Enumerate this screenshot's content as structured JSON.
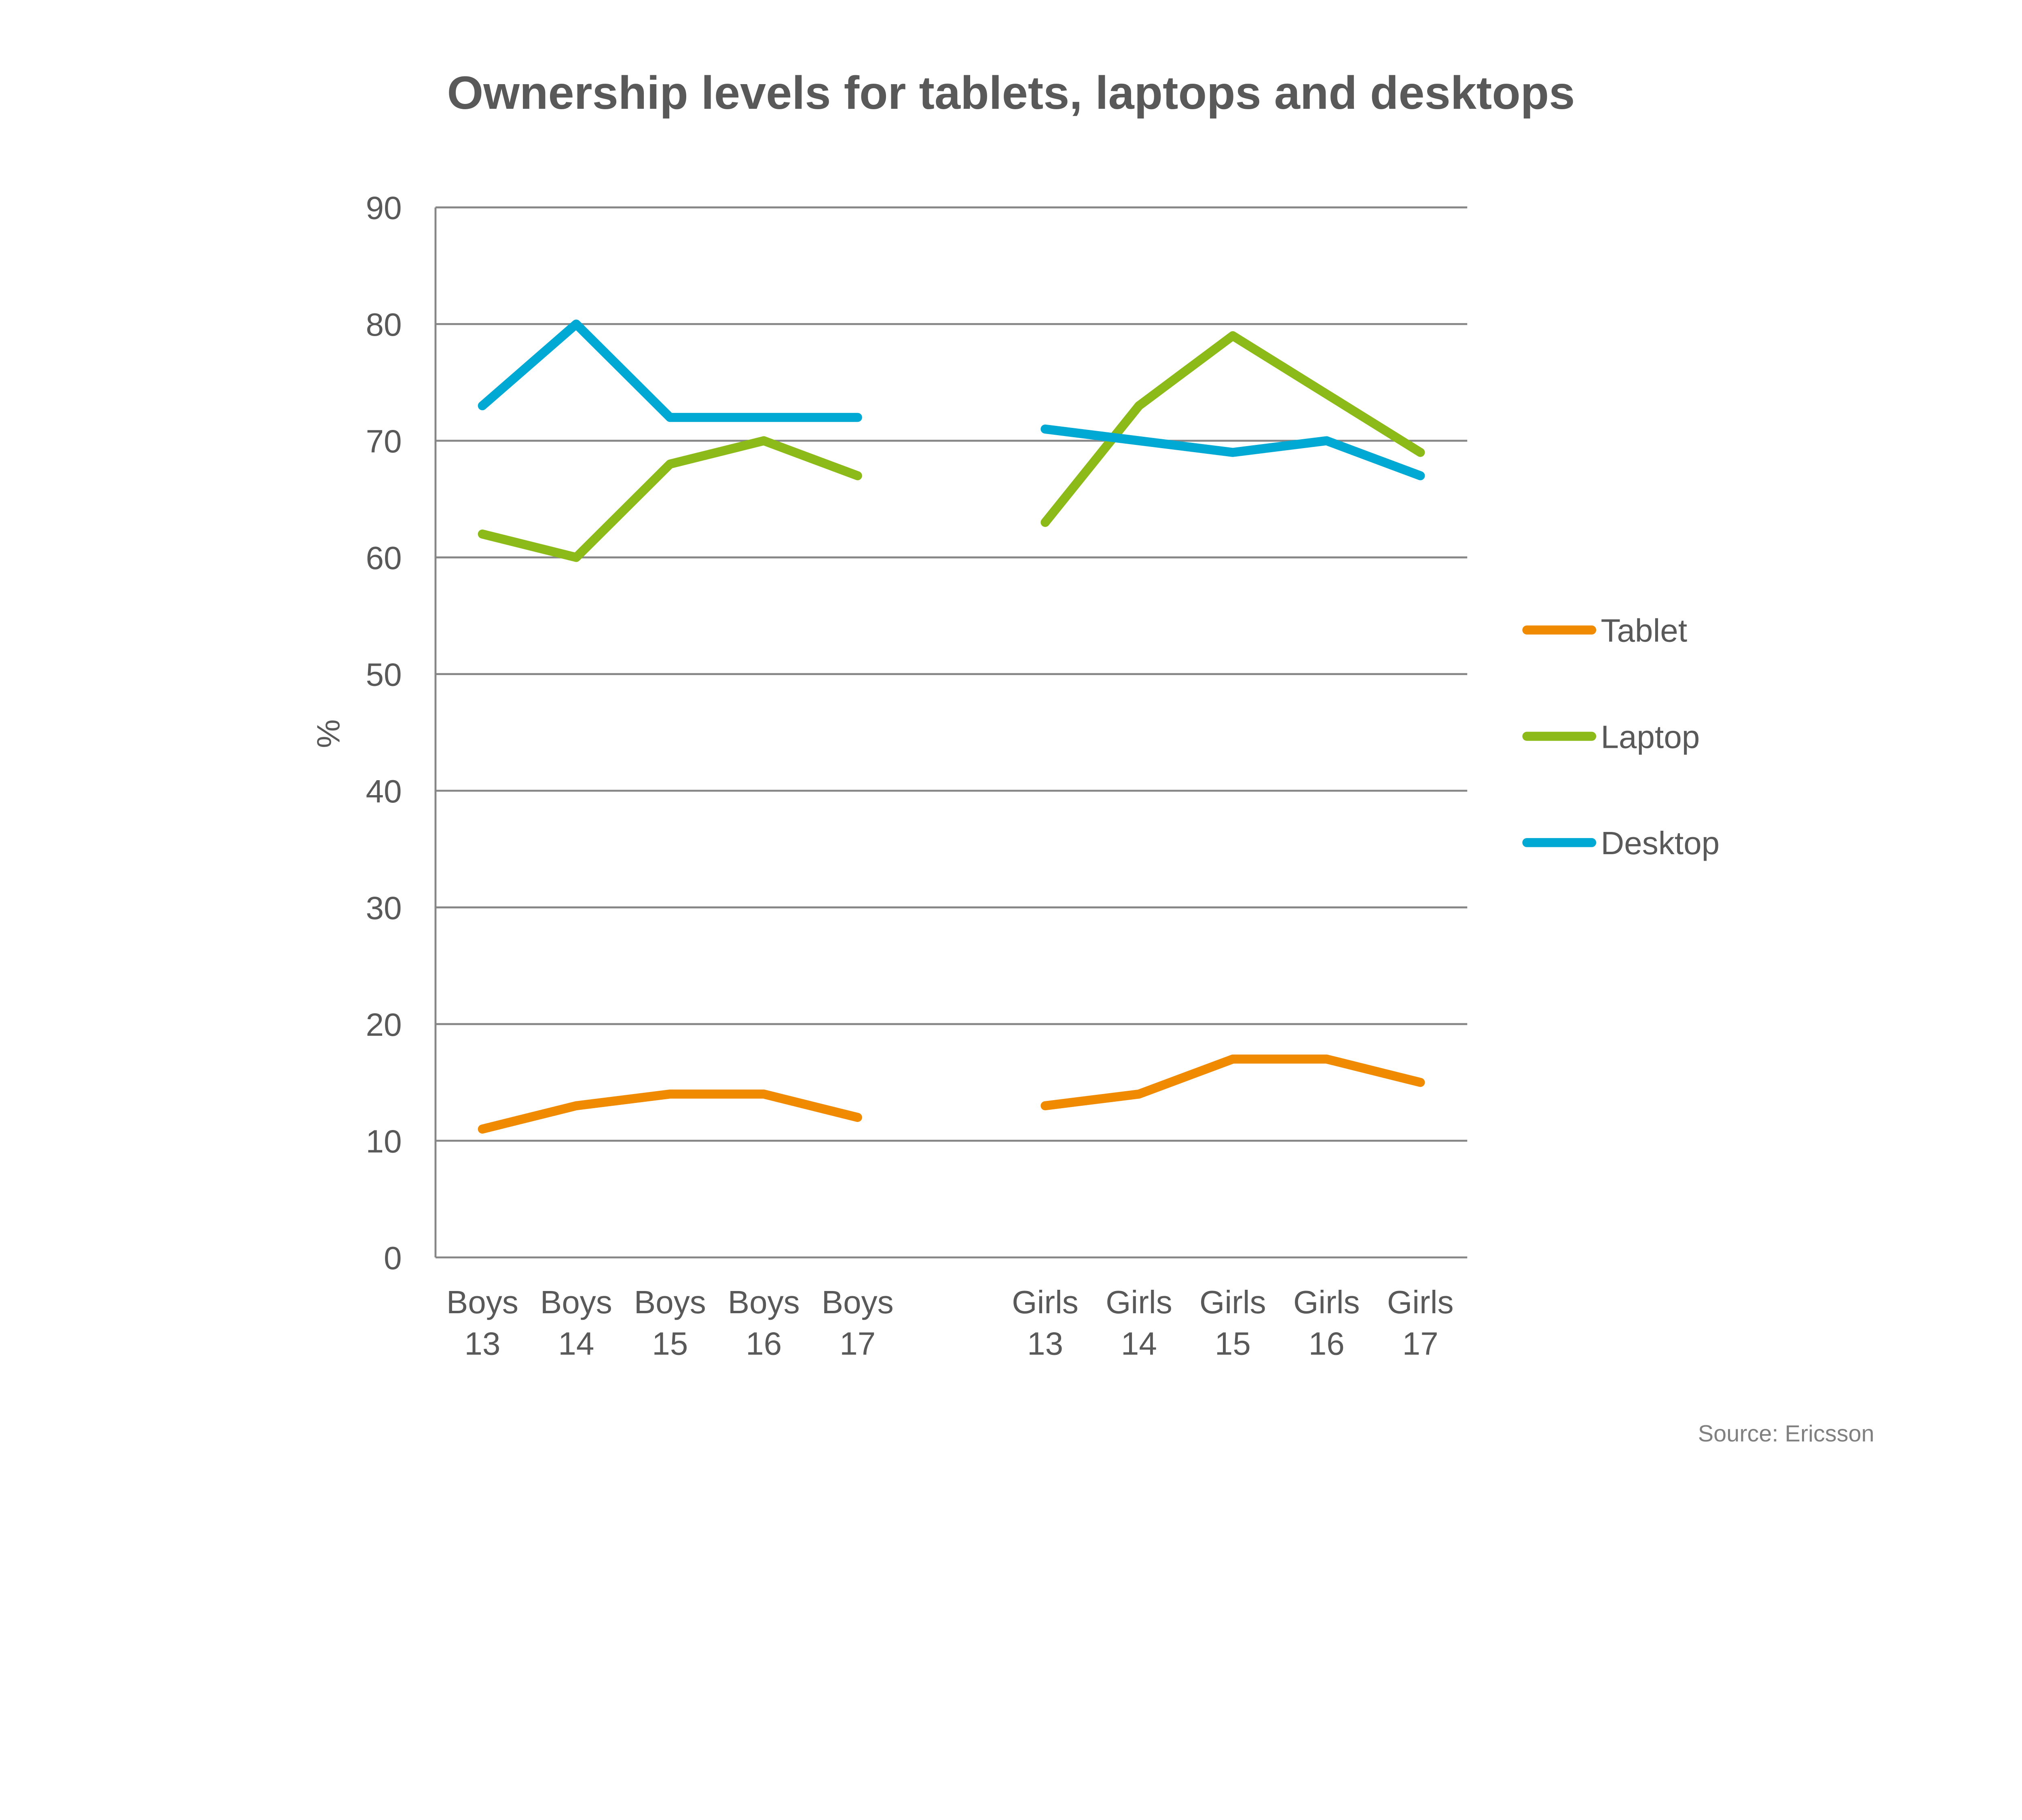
{
  "chart_data": {
    "type": "line",
    "title": "Ownership levels for tablets, laptops and desktops",
    "ylabel": "%",
    "xlabel": "",
    "ylim": [
      0,
      90
    ],
    "yticks": [
      0,
      10,
      20,
      30,
      40,
      50,
      60,
      70,
      80,
      90
    ],
    "grid": true,
    "legend_position": "right",
    "categories": [
      [
        "Boys",
        "13"
      ],
      [
        "Boys",
        "14"
      ],
      [
        "Boys",
        "15"
      ],
      [
        "Boys",
        "16"
      ],
      [
        "Boys",
        "17"
      ],
      [
        "",
        ""
      ],
      [
        "Girls",
        "13"
      ],
      [
        "Girls",
        "14"
      ],
      [
        "Girls",
        "15"
      ],
      [
        "Girls",
        "16"
      ],
      [
        "Girls",
        "17"
      ]
    ],
    "series": [
      {
        "name": "Tablet",
        "color": "#F08A00",
        "values": [
          11,
          13,
          14,
          14,
          12,
          null,
          13,
          14,
          17,
          17,
          15
        ]
      },
      {
        "name": "Laptop",
        "color": "#8CBA19",
        "values": [
          62,
          60,
          68,
          70,
          67,
          null,
          63,
          73,
          79,
          74,
          69
        ]
      },
      {
        "name": "Desktop",
        "color": "#00A9D4",
        "values": [
          73,
          80,
          72,
          72,
          72,
          null,
          71,
          70,
          69,
          70,
          67
        ]
      }
    ],
    "source": "Source: Ericsson"
  }
}
